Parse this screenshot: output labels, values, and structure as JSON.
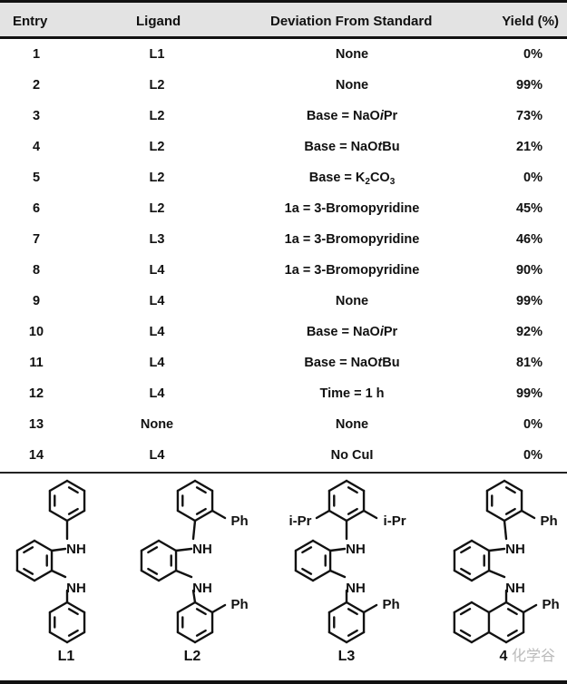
{
  "table": {
    "headers": {
      "entry": "Entry",
      "ligand": "Ligand",
      "deviation": "Deviation From Standard",
      "yield": "Yield (%)"
    },
    "rows": [
      {
        "entry": "1",
        "ligand": "L1",
        "deviation": [
          {
            "t": "None"
          }
        ],
        "yield": "0%"
      },
      {
        "entry": "2",
        "ligand": "L2",
        "deviation": [
          {
            "t": "None"
          }
        ],
        "yield": "99%"
      },
      {
        "entry": "3",
        "ligand": "L2",
        "deviation": [
          {
            "t": "Base = NaO"
          },
          {
            "t": "i",
            "style": "italic"
          },
          {
            "t": "Pr"
          }
        ],
        "yield": "73%"
      },
      {
        "entry": "4",
        "ligand": "L2",
        "deviation": [
          {
            "t": "Base = NaO"
          },
          {
            "t": "t",
            "style": "italic"
          },
          {
            "t": "Bu"
          }
        ],
        "yield": "21%"
      },
      {
        "entry": "5",
        "ligand": "L2",
        "deviation": [
          {
            "t": "Base = K"
          },
          {
            "t": "2",
            "style": "sub"
          },
          {
            "t": "CO"
          },
          {
            "t": "3",
            "style": "sub"
          }
        ],
        "yield": "0%"
      },
      {
        "entry": "6",
        "ligand": "L2",
        "deviation": [
          {
            "t": "1a = 3-Bromopyridine"
          }
        ],
        "yield": "45%"
      },
      {
        "entry": "7",
        "ligand": "L3",
        "deviation": [
          {
            "t": "1a = 3-Bromopyridine"
          }
        ],
        "yield": "46%"
      },
      {
        "entry": "8",
        "ligand": "L4",
        "deviation": [
          {
            "t": "1a = 3-Bromopyridine"
          }
        ],
        "yield": "90%"
      },
      {
        "entry": "9",
        "ligand": "L4",
        "deviation": [
          {
            "t": "None"
          }
        ],
        "yield": "99%"
      },
      {
        "entry": "10",
        "ligand": "L4",
        "deviation": [
          {
            "t": "Base = NaO"
          },
          {
            "t": "i",
            "style": "italic"
          },
          {
            "t": "Pr"
          }
        ],
        "yield": "92%"
      },
      {
        "entry": "11",
        "ligand": "L4",
        "deviation": [
          {
            "t": "Base = NaO"
          },
          {
            "t": "t",
            "style": "italic"
          },
          {
            "t": "Bu"
          }
        ],
        "yield": "81%"
      },
      {
        "entry": "12",
        "ligand": "L4",
        "deviation": [
          {
            "t": "Time = 1 h"
          }
        ],
        "yield": "99%"
      },
      {
        "entry": "13",
        "ligand": "None",
        "deviation": [
          {
            "t": "None"
          }
        ],
        "yield": "0%"
      },
      {
        "entry": "14",
        "ligand": "L4",
        "deviation": [
          {
            "t": "No CuI"
          }
        ],
        "yield": "0%"
      }
    ]
  },
  "structures": {
    "labels": [
      "L1",
      "L2",
      "L3",
      "4"
    ],
    "nh": "NH",
    "ph": "Ph",
    "ipr": "i-Pr",
    "watermark": "化学谷"
  },
  "colors": {
    "header_bg": "#e3e3e3",
    "rule": "#111111"
  }
}
